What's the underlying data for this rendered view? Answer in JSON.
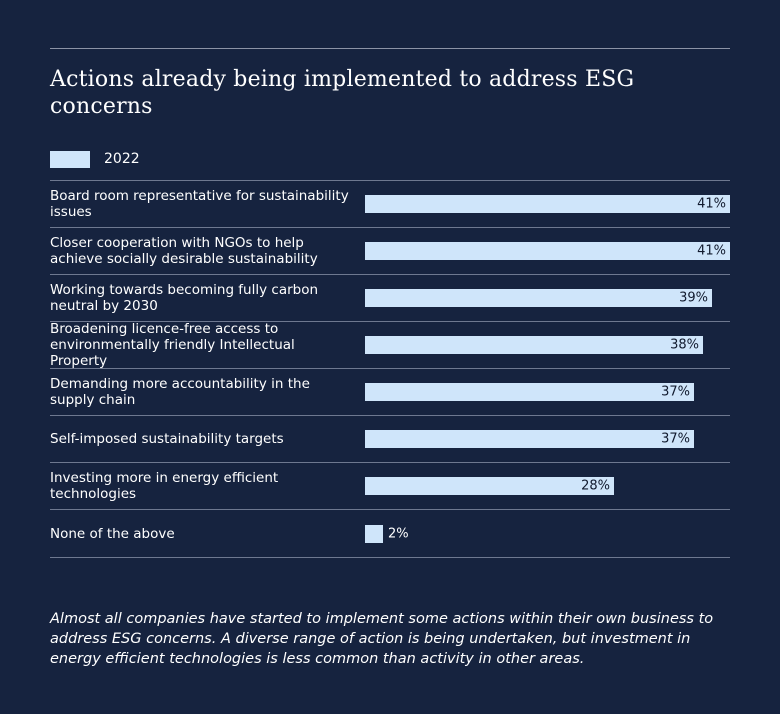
{
  "chart_data": {
    "type": "bar",
    "orientation": "horizontal",
    "title": "Actions already being implemented to address ESG concerns",
    "categories": [
      "Board room representative for sustainability issues",
      "Closer cooperation with NGOs to help achieve socially desirable sustainability",
      "Working towards becoming fully carbon neutral by 2030",
      "Broadening licence-free access to environmentally friendly Intellectual Property",
      "Demanding more accountability in the supply chain",
      "Self-imposed sustainability targets",
      "Investing more in energy efficient technologies",
      "None of the above"
    ],
    "series": [
      {
        "name": "2022",
        "values": [
          41,
          41,
          39,
          38,
          37,
          37,
          28,
          2
        ],
        "labels": [
          "41%",
          "41%",
          "39%",
          "38%",
          "37%",
          "37%",
          "28%",
          "2%"
        ]
      }
    ],
    "xlim": [
      0,
      41
    ],
    "grid": false,
    "legend": "top-left",
    "colors": {
      "background": "#16233f",
      "bar": "#cfe5fa",
      "rule": "#6e7890"
    }
  },
  "footnote": "Almost all companies have started to implement some actions within their own business to address ESG concerns. A diverse range of action is being undertaken, but investment in energy efficient technologies is less common than activity in other areas."
}
